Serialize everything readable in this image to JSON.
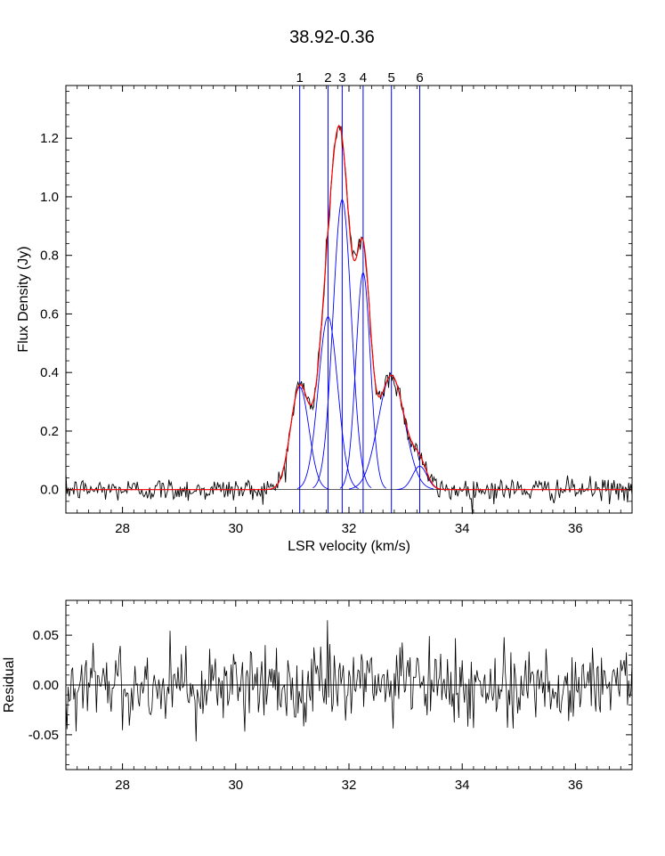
{
  "title": "38.92-0.36",
  "colors": {
    "data": "#000000",
    "fit": "#ff0000",
    "component": "#0000ff",
    "axis": "#000000"
  },
  "chart_data": [
    {
      "type": "line",
      "name": "spectrum",
      "xlabel": "LSR velocity (km/s)",
      "ylabel": "Flux Density (Jy)",
      "xlim": [
        27,
        37
      ],
      "ylim": [
        -0.08,
        1.38
      ],
      "x_ticks": [
        28,
        30,
        32,
        34,
        36
      ],
      "x_tick_labels": [
        "28",
        "30",
        "32",
        "34",
        "36"
      ],
      "y_ticks": [
        0.0,
        0.2,
        0.4,
        0.6,
        0.8,
        1.0,
        1.2
      ],
      "y_tick_labels": [
        "0.0",
        "0.2",
        "0.4",
        "0.6",
        "0.8",
        "1.0",
        "1.2"
      ],
      "components": [
        {
          "label": "1",
          "center": 31.13,
          "amplitude": 0.35,
          "fwhm": 0.38
        },
        {
          "label": "2",
          "center": 31.63,
          "amplitude": 0.59,
          "fwhm": 0.4
        },
        {
          "label": "3",
          "center": 31.88,
          "amplitude": 0.99,
          "fwhm": 0.38
        },
        {
          "label": "4",
          "center": 32.25,
          "amplitude": 0.74,
          "fwhm": 0.3
        },
        {
          "label": "5",
          "center": 32.75,
          "amplitude": 0.39,
          "fwhm": 0.55
        },
        {
          "label": "6",
          "center": 33.25,
          "amplitude": 0.08,
          "fwhm": 0.3
        }
      ],
      "noise_rms": 0.02,
      "x_step": 0.02
    },
    {
      "type": "line",
      "name": "residual",
      "xlabel": "",
      "ylabel": "Residual",
      "xlim": [
        27,
        37
      ],
      "ylim": [
        -0.085,
        0.085
      ],
      "x_ticks": [
        28,
        30,
        32,
        34,
        36
      ],
      "x_tick_labels": [
        "28",
        "30",
        "32",
        "34",
        "36"
      ],
      "y_ticks": [
        -0.05,
        0.0,
        0.05
      ],
      "y_tick_labels": [
        "-0.05",
        "0.00",
        "0.05"
      ],
      "zero_line": 0.0,
      "noise_rms": 0.02,
      "x_step": 0.02
    }
  ]
}
